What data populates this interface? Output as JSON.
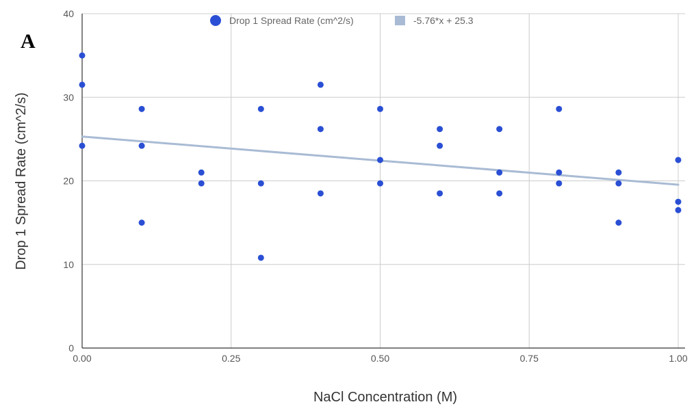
{
  "panel_label": "A",
  "chart_data": {
    "type": "scatter",
    "xlabel": "NaCl Concentration (M)",
    "ylabel": "Drop 1 Spread Rate (cm^2/s)",
    "xlim": [
      0,
      1
    ],
    "ylim": [
      0,
      40
    ],
    "x_ticks": [
      "0.00",
      "0.25",
      "0.50",
      "0.75",
      "1.00"
    ],
    "y_ticks": [
      "0",
      "10",
      "20",
      "30",
      "40"
    ],
    "grid": true,
    "legend_position": "top",
    "series": [
      {
        "name": "Drop 1 Spread Rate (cm^2/s)",
        "color": "#2a4fd4",
        "points": [
          [
            0.0,
            35.0
          ],
          [
            0.0,
            31.5
          ],
          [
            0.0,
            24.2
          ],
          [
            0.1,
            28.6
          ],
          [
            0.1,
            24.2
          ],
          [
            0.1,
            15.0
          ],
          [
            0.2,
            21.0
          ],
          [
            0.2,
            19.7
          ],
          [
            0.3,
            28.6
          ],
          [
            0.3,
            19.7
          ],
          [
            0.3,
            10.8
          ],
          [
            0.4,
            31.5
          ],
          [
            0.4,
            26.2
          ],
          [
            0.4,
            18.5
          ],
          [
            0.5,
            28.6
          ],
          [
            0.5,
            22.5
          ],
          [
            0.5,
            19.7
          ],
          [
            0.6,
            26.2
          ],
          [
            0.6,
            24.2
          ],
          [
            0.6,
            18.5
          ],
          [
            0.7,
            26.2
          ],
          [
            0.7,
            21.0
          ],
          [
            0.7,
            18.5
          ],
          [
            0.8,
            28.6
          ],
          [
            0.8,
            21.0
          ],
          [
            0.8,
            19.7
          ],
          [
            0.9,
            21.0
          ],
          [
            0.9,
            19.7
          ],
          [
            0.9,
            15.0
          ],
          [
            1.0,
            22.5
          ],
          [
            1.0,
            17.5
          ],
          [
            1.0,
            16.5
          ]
        ]
      }
    ],
    "trendline": {
      "name": "-5.76*x + 25.3",
      "slope": -5.76,
      "intercept": 25.3,
      "color": "#a9bbd4"
    }
  }
}
